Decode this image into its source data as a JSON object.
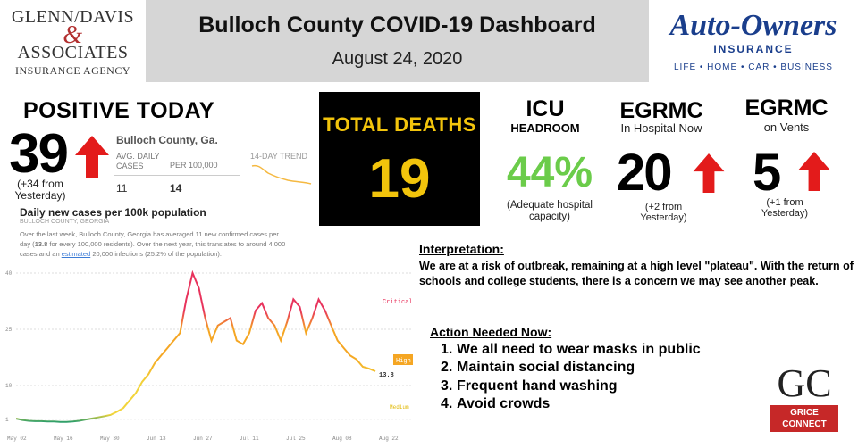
{
  "header": {
    "left_logo": {
      "line1": "GLENN/DAVIS",
      "ampersand": "&",
      "line2": "ASSOCIATES",
      "line3": "INSURANCE AGENCY"
    },
    "title": "Bulloch County COVID-19 Dashboard",
    "date": "August 24, 2020",
    "right_logo": {
      "name": "Auto-Owners",
      "sub": "INSURANCE",
      "tagline": "LIFE • HOME • CAR • BUSINESS"
    }
  },
  "positive_today": {
    "title": "POSITIVE TODAY",
    "value": "39",
    "change": "(+34 from Yesterday)"
  },
  "county_panel": {
    "name": "Bulloch County, Ga.",
    "avg_label": "AVG. DAILY CASES",
    "avg_value": "11",
    "per_label": "PER 100,000",
    "per_value": "14",
    "trend_label": "14-DAY TREND",
    "daily_title": "Daily new cases per 100k population",
    "daily_sub": "BULLOCH COUNTY, GEORGIA",
    "desc_a": "Over the last week, Bulloch County, Georgia has averaged 11 new confirmed cases per day (",
    "desc_b": "13.8",
    "desc_c": " for every 100,000 residents). Over the next year, this translates to around 4,000 cases and an ",
    "desc_d": "estimated",
    "desc_e": " 20,000 infections (25.2% of the population)."
  },
  "total_deaths": {
    "label": "TOTAL DEATHS",
    "value": "19"
  },
  "icu": {
    "title": "ICU",
    "subtitle": "HEADROOM",
    "value": "44%",
    "note": "(Adequate hospital capacity)"
  },
  "egrmc_hospital": {
    "title": "EGRMC",
    "subtitle": "In Hospital Now",
    "value": "20",
    "note": "(+2 from Yesterday)"
  },
  "egrmc_vents": {
    "title": "EGRMC",
    "subtitle": "on Vents",
    "value": "5",
    "note": "(+1 from Yesterday)"
  },
  "interpretation": {
    "heading": "Interpretation:",
    "text": "We are at a risk of outbreak, remaining at a high level \"plateau\". With the return of schools and college students, there is a concern we may see another peak."
  },
  "action": {
    "heading": "Action Needed Now:",
    "items": [
      {
        "num": "1.",
        "text": "We all need to wear masks in public"
      },
      {
        "num": "2.",
        "text": "Maintain social distancing"
      },
      {
        "num": "3.",
        "text": "Frequent hand washing"
      },
      {
        "num": "4.",
        "text": "Avoid crowds"
      }
    ]
  },
  "grice": {
    "letters": "GC",
    "line1": "GRICE",
    "line2": "CONNECT"
  },
  "colors": {
    "arrow_red": "#e31b1b",
    "deaths_yellow": "#f2c40c",
    "icu_green": "#6bcc4a",
    "critical": "#e8335c",
    "high": "#f5a623",
    "medium": "#f2d43b",
    "low": "#2e9e6a"
  },
  "chart_data": {
    "type": "line",
    "title": "Daily new cases per 100k population",
    "x_ticks": [
      "May 02",
      "May 16",
      "May 30",
      "Jun 13",
      "Jun 27",
      "Jul 11",
      "Jul 25",
      "Aug 08",
      "Aug 22"
    ],
    "y_ticks": [
      "1",
      "10",
      "25",
      "40"
    ],
    "ylim": [
      0,
      40
    ],
    "zone_labels": {
      "critical": "Critical",
      "high": "High",
      "medium": "Medium"
    },
    "last_label": "13.8",
    "series": [
      {
        "x": [
          0,
          2,
          4,
          6,
          8,
          10,
          12,
          14,
          16,
          18,
          20,
          22,
          24,
          26,
          28,
          30,
          32,
          34,
          36,
          38,
          40,
          42,
          44,
          46,
          48,
          50,
          52,
          54,
          56,
          58,
          60,
          62,
          64,
          66,
          68,
          70,
          72,
          74,
          76,
          78,
          80,
          82,
          84,
          86,
          88,
          90,
          92,
          94,
          96,
          98,
          100,
          102,
          104,
          106,
          108,
          110,
          112,
          114
        ],
        "values": [
          1.2,
          0.8,
          0.6,
          0.5,
          0.5,
          0.4,
          0.4,
          0.3,
          0.3,
          0.4,
          0.6,
          0.9,
          1.2,
          1.5,
          1.8,
          2.2,
          3.0,
          4.0,
          6.0,
          8.0,
          11.0,
          13.0,
          16.0,
          18.0,
          20.0,
          22.0,
          24.0,
          33.0,
          40.0,
          36.0,
          28.0,
          22.0,
          26.0,
          27.0,
          28.0,
          22.0,
          21.0,
          24.0,
          30.0,
          32.0,
          28.0,
          26.0,
          22.0,
          27.0,
          33.0,
          31.0,
          24.0,
          28.0,
          33.0,
          30.0,
          26.0,
          22.0,
          20.0,
          18.0,
          17.0,
          15.0,
          14.5,
          13.8
        ]
      }
    ]
  }
}
